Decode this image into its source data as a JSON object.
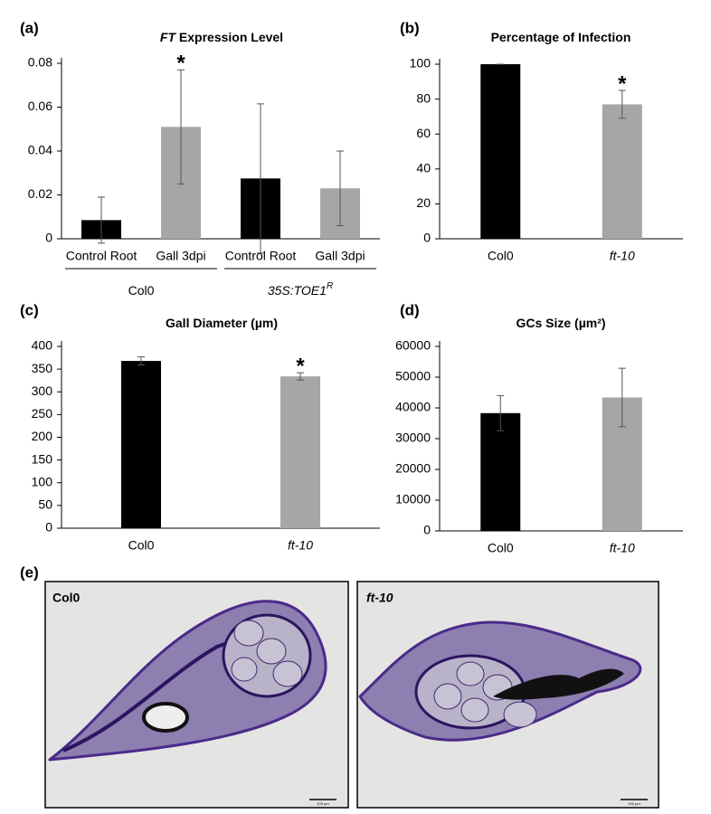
{
  "chart_data": [
    {
      "type": "bar",
      "panel_label": "(a)",
      "title_prefix": "FT",
      "title": " Expression Level",
      "categories": [
        "Control Root",
        "Gall 3dpi",
        "Control Root",
        "Gall 3dpi"
      ],
      "values": [
        0.0085,
        0.051,
        0.0275,
        0.023
      ],
      "errors": [
        0.0105,
        0.026,
        0.034,
        0.017
      ],
      "colors": [
        "#000000",
        "#a6a6a6",
        "#000000",
        "#a6a6a6"
      ],
      "significance": [
        null,
        "*",
        null,
        null
      ],
      "groups": [
        {
          "label": "Col0"
        },
        {
          "label": "35S:TOE1",
          "superscript": "R"
        }
      ],
      "ylim": [
        0,
        0.08
      ],
      "yticks": [
        0,
        0.02,
        0.04,
        0.06,
        0.08
      ]
    },
    {
      "type": "bar",
      "panel_label": "(b)",
      "title": "Percentage of Infection",
      "categories": [
        "Col0",
        "ft-10"
      ],
      "category_styles": [
        "normal",
        "italic"
      ],
      "values": [
        100,
        77
      ],
      "errors": [
        0,
        8
      ],
      "colors": [
        "#000000",
        "#a6a6a6"
      ],
      "significance": [
        null,
        "*"
      ],
      "ylim": [
        0,
        100
      ],
      "yticks": [
        0,
        20,
        40,
        60,
        80,
        100
      ]
    },
    {
      "type": "bar",
      "panel_label": "(c)",
      "title": "Gall Diameter (µm)",
      "categories": [
        "Col0",
        "ft-10"
      ],
      "category_styles": [
        "normal",
        "italic"
      ],
      "values": [
        368,
        334
      ],
      "errors": [
        9,
        8
      ],
      "colors": [
        "#000000",
        "#a6a6a6"
      ],
      "significance": [
        null,
        "*"
      ],
      "ylim": [
        0,
        400
      ],
      "yticks": [
        0,
        50,
        100,
        150,
        200,
        250,
        300,
        350,
        400
      ]
    },
    {
      "type": "bar",
      "panel_label": "(d)",
      "title": "GCs Size (µm²)",
      "categories": [
        "Col0",
        "ft-10"
      ],
      "category_styles": [
        "normal",
        "italic"
      ],
      "values": [
        38300,
        43400
      ],
      "errors": [
        5700,
        9500
      ],
      "colors": [
        "#000000",
        "#a6a6a6"
      ],
      "ylim": [
        0,
        60000
      ],
      "yticks": [
        0,
        10000,
        20000,
        30000,
        40000,
        50000,
        60000
      ]
    }
  ],
  "micrographs": {
    "panel_label": "(e)",
    "images": [
      {
        "label": "Col0",
        "scale_bar": "100 µm"
      },
      {
        "label": "ft-10",
        "scale_bar": "100 µm"
      }
    ]
  }
}
